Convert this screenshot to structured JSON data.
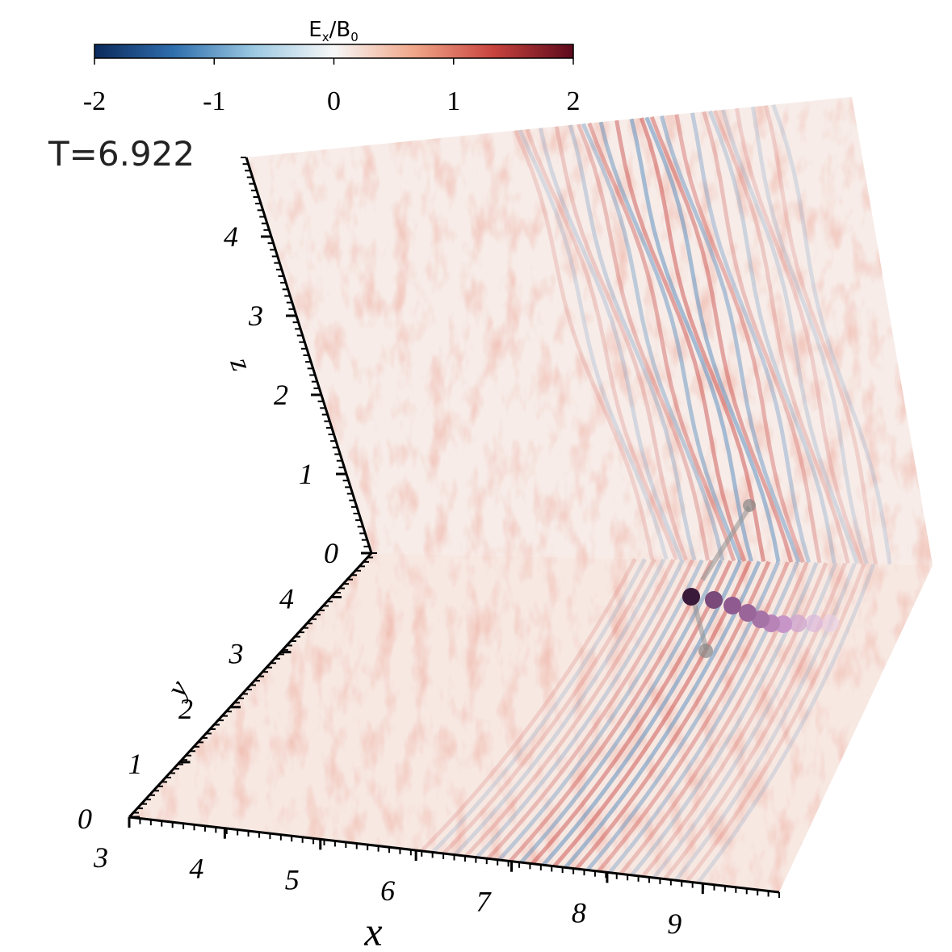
{
  "chart_data": {
    "type": "field3d",
    "colorbar_label": [
      "E",
      "x",
      "/B",
      "0"
    ],
    "clim": [
      -2,
      2
    ],
    "cticks": [
      -2,
      -1,
      0,
      1,
      2
    ],
    "colormap": [
      "#0b2a5c",
      "#2f6fad",
      "#9cc9e2",
      "#f7f7f7",
      "#f0a789",
      "#c8433e",
      "#5c0a1c"
    ],
    "time_label": "T=6.922",
    "xlabel": "x",
    "ylabel": "y",
    "zlabel": "z",
    "xlim": [
      3,
      9.8
    ],
    "xticks": [
      3,
      4,
      5,
      6,
      7,
      8,
      9
    ],
    "ylim": [
      0,
      4.8
    ],
    "yticks": [
      0,
      1,
      2,
      3,
      4
    ],
    "zlim": [
      0,
      5
    ],
    "zticks": [
      0,
      1,
      2,
      3,
      4
    ]
  }
}
